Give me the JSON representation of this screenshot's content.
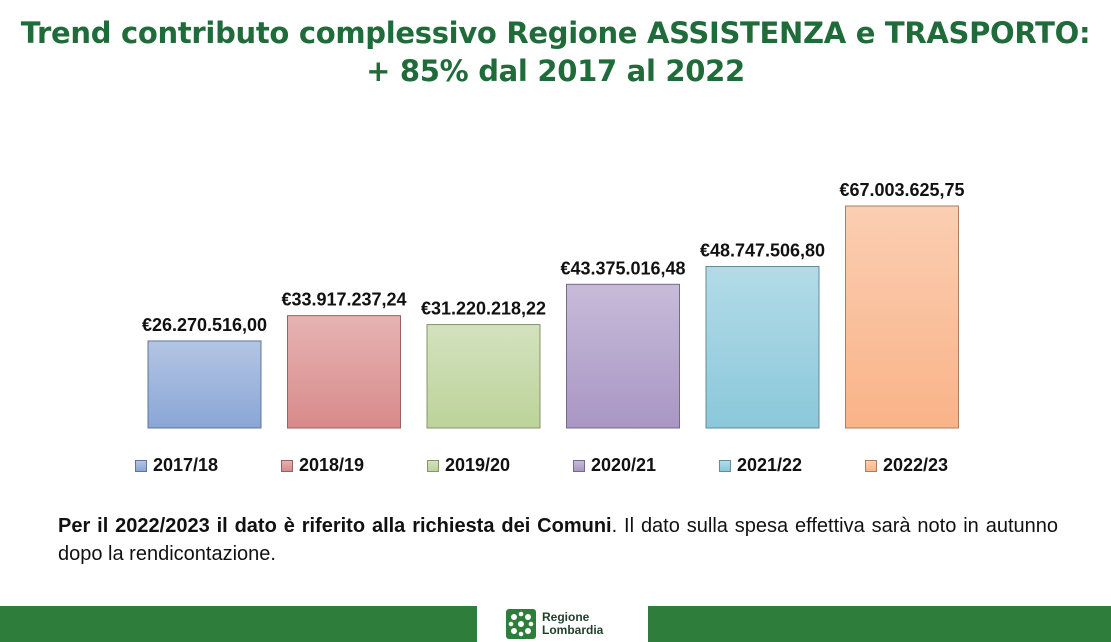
{
  "header": {
    "title_line1": "Trend contributo complessivo Regione ASSISTENZA e TRASPORTO:",
    "title_line2": "+ 85% dal 2017 al 2022"
  },
  "chart_data": {
    "type": "bar",
    "categories": [
      "2017/18",
      "2018/19",
      "2019/20",
      "2020/21",
      "2021/22",
      "2022/23"
    ],
    "values": [
      26270516.0,
      33917237.24,
      31220218.22,
      43375016.48,
      48747506.8,
      67003625.75
    ],
    "data_labels": [
      "€26.270.516,00",
      "€33.917.237,24",
      "€31.220.218,22",
      "€43.375.016,48",
      "€48.747.506,80",
      "€67.003.625,75"
    ],
    "colors": [
      "#8aa6d6",
      "#d98a8a",
      "#bcd39a",
      "#a996c4",
      "#8ac8da",
      "#f9b388"
    ],
    "legend_position": "bottom",
    "grid": false
  },
  "footnote": {
    "bold_text": "Per il 2022/2023 il dato è riferito alla richiesta dei Comuni",
    "normal_text": ". Il dato sulla spesa effettiva sarà noto in autunno dopo la rendicontazione."
  },
  "footer": {
    "logo_line1": "Regione",
    "logo_line2": "Lombardia",
    "brand_color": "#2e7d3a"
  }
}
